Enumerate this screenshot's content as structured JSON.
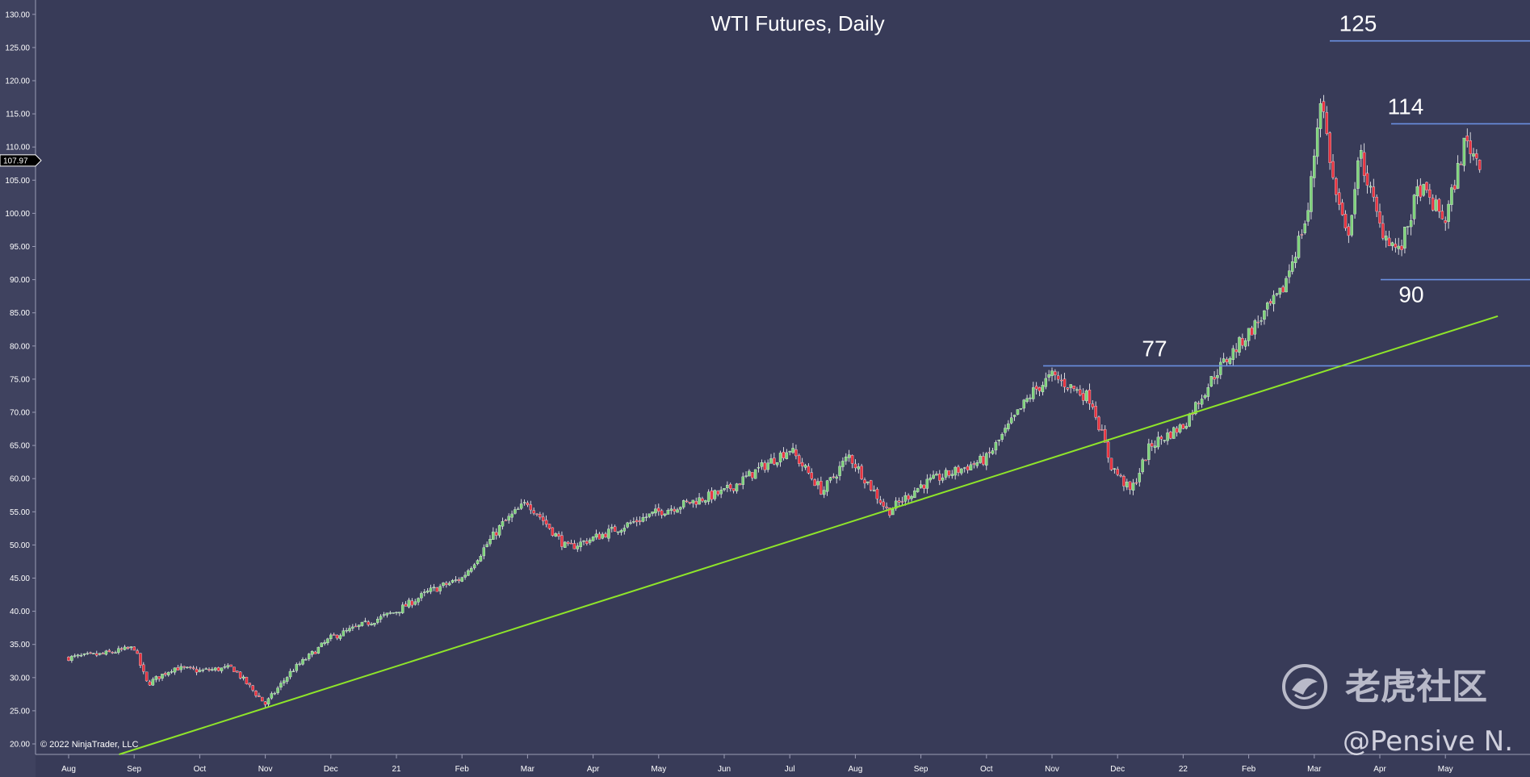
{
  "chart_data": {
    "type": "candlestick",
    "title": "WTI Futures, Daily",
    "xlabel": "",
    "ylabel": "",
    "ylim": [
      18,
      131
    ],
    "y_ticks": [
      "20.00",
      "25.00",
      "30.00",
      "35.00",
      "40.00",
      "45.00",
      "50.00",
      "55.00",
      "60.00",
      "65.00",
      "70.00",
      "75.00",
      "80.00",
      "85.00",
      "90.00",
      "95.00",
      "100.00",
      "105.00",
      "110.00",
      "115.00",
      "120.00",
      "125.00",
      "130.00"
    ],
    "x_tick_labels": [
      "Aug",
      "Sep",
      "Oct",
      "Nov",
      "Dec",
      "21",
      "Feb",
      "Mar",
      "Apr",
      "May",
      "Jun",
      "Jul",
      "Aug",
      "Sep",
      "Oct",
      "Nov",
      "Dec",
      "22",
      "Feb",
      "Mar",
      "Apr",
      "May"
    ],
    "last_price_label": "107.97",
    "price_path": [
      {
        "month": 0,
        "close": 33.0
      },
      {
        "month": 0.5,
        "close": 33.5
      },
      {
        "month": 1,
        "close": 34.5
      },
      {
        "month": 1.2,
        "close": 29.0
      },
      {
        "month": 1.6,
        "close": 31.5
      },
      {
        "month": 2,
        "close": 31.0
      },
      {
        "month": 2.5,
        "close": 31.5
      },
      {
        "month": 3,
        "close": 26.0
      },
      {
        "month": 3.4,
        "close": 31.0
      },
      {
        "month": 4,
        "close": 36.0
      },
      {
        "month": 5,
        "close": 40.0
      },
      {
        "month": 5.5,
        "close": 43.0
      },
      {
        "month": 6,
        "close": 45.0
      },
      {
        "month": 6.6,
        "close": 53.0
      },
      {
        "month": 7,
        "close": 56.5
      },
      {
        "month": 7.6,
        "close": 49.5
      },
      {
        "month": 8,
        "close": 51.0
      },
      {
        "month": 9,
        "close": 55.0
      },
      {
        "month": 10,
        "close": 58.0
      },
      {
        "month": 11,
        "close": 64.5
      },
      {
        "month": 11.5,
        "close": 58.0
      },
      {
        "month": 11.9,
        "close": 63.5
      },
      {
        "month": 12.5,
        "close": 55.0
      },
      {
        "month": 13,
        "close": 59.0
      },
      {
        "month": 14,
        "close": 63.0
      },
      {
        "month": 14.7,
        "close": 73.0
      },
      {
        "month": 15,
        "close": 75.5
      },
      {
        "month": 15.6,
        "close": 72.0
      },
      {
        "month": 15.9,
        "close": 62.0
      },
      {
        "month": 16.2,
        "close": 58.0
      },
      {
        "month": 16.5,
        "close": 65.0
      },
      {
        "month": 17,
        "close": 68.0
      },
      {
        "month": 17.5,
        "close": 76.0
      },
      {
        "month": 18,
        "close": 82.0
      },
      {
        "month": 18.5,
        "close": 88.0
      },
      {
        "month": 18.9,
        "close": 100.0
      },
      {
        "month": 19.1,
        "close": 118.0
      },
      {
        "month": 19.3,
        "close": 104.0
      },
      {
        "month": 19.5,
        "close": 96.0
      },
      {
        "month": 19.7,
        "close": 109.0
      },
      {
        "month": 20,
        "close": 98.0
      },
      {
        "month": 20.3,
        "close": 94.0
      },
      {
        "month": 20.6,
        "close": 104.0
      },
      {
        "month": 21,
        "close": 99.0
      },
      {
        "month": 21.3,
        "close": 111.0
      },
      {
        "month": 21.5,
        "close": 107.97
      }
    ],
    "horizontal_levels": [
      {
        "label": "125",
        "value": 126.0
      },
      {
        "label": "114",
        "value": 113.5
      },
      {
        "label": "90",
        "value": 90.0
      },
      {
        "label": "77",
        "value": 77.0
      }
    ],
    "trendline": {
      "start": {
        "month": 0,
        "value": 16.0
      },
      "end": {
        "month": 21.8,
        "value": 84.5
      }
    },
    "colors": {
      "background": "#383b58",
      "up_candle": "#7ed37a",
      "down_candle": "#e8333f",
      "wick": "#ffffff",
      "level_line": "#6a8fe0",
      "trendline": "#8fe52a",
      "text": "#ffffff"
    }
  },
  "copyright": "© 2022 NinjaTrader, LLC",
  "watermark": {
    "brand_text": "老虎社区",
    "handle": "@Pensive N.",
    "logo_icon": "tiger-logo-icon"
  }
}
